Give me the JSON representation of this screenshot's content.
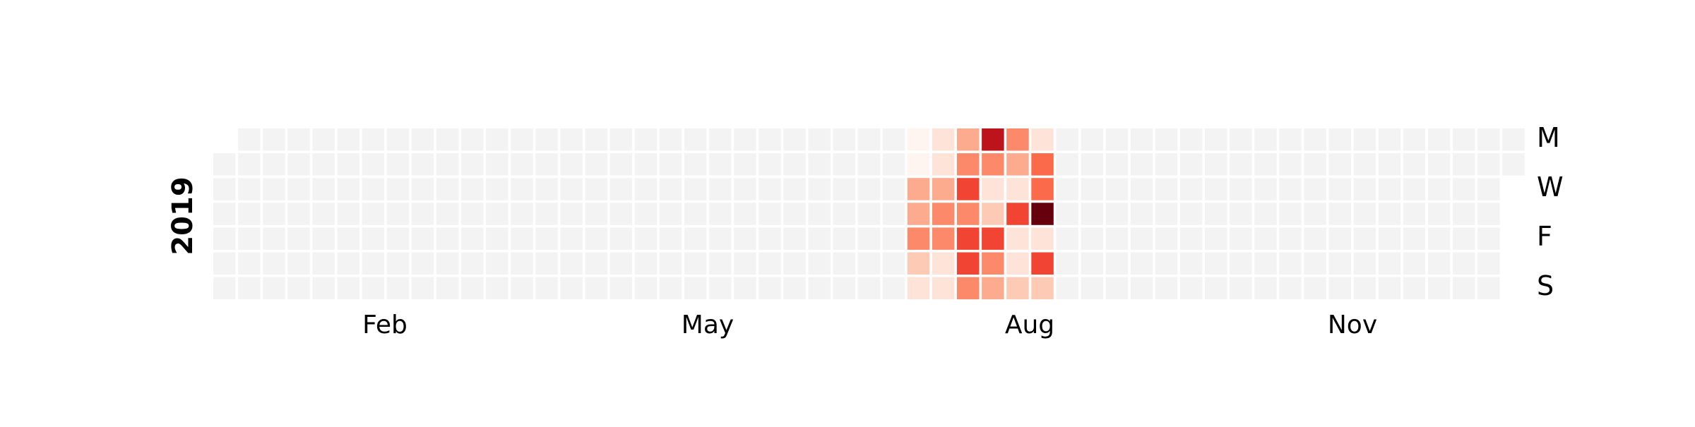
{
  "chart_data": {
    "type": "heatmap",
    "title": "",
    "year_label": "2019",
    "year": 2019,
    "month_labels": [
      "Feb",
      "May",
      "Aug",
      "Nov"
    ],
    "day_labels": [
      "M",
      "W",
      "F",
      "S"
    ],
    "empty_color": "#f3f3f3",
    "colormap": "Reds",
    "value_range": [
      0,
      10
    ],
    "values_by_date": {
      "2019-07-15": 0,
      "2019-07-16": 0,
      "2019-07-17": 3,
      "2019-07-18": 3,
      "2019-07-19": 4,
      "2019-07-20": 2,
      "2019-07-21": 1,
      "2019-07-22": 1,
      "2019-07-23": 1,
      "2019-07-24": 3,
      "2019-07-25": 4,
      "2019-07-26": 4,
      "2019-07-27": 1,
      "2019-07-28": 1,
      "2019-07-29": 3,
      "2019-07-30": 4,
      "2019-07-31": 6,
      "2019-08-01": 4,
      "2019-08-02": 6,
      "2019-08-03": 6,
      "2019-08-04": 4,
      "2019-08-05": 8,
      "2019-08-06": 4,
      "2019-08-07": 1,
      "2019-08-08": 2,
      "2019-08-09": 6,
      "2019-08-10": 4,
      "2019-08-11": 3,
      "2019-08-12": 4,
      "2019-08-13": 3,
      "2019-08-14": 1,
      "2019-08-15": 6,
      "2019-08-16": 1,
      "2019-08-17": 1,
      "2019-08-18": 2,
      "2019-08-19": 1,
      "2019-08-20": 5,
      "2019-08-21": 5,
      "2019-08-22": 10,
      "2019-08-23": 1,
      "2019-08-24": 6,
      "2019-08-25": 2
    }
  }
}
